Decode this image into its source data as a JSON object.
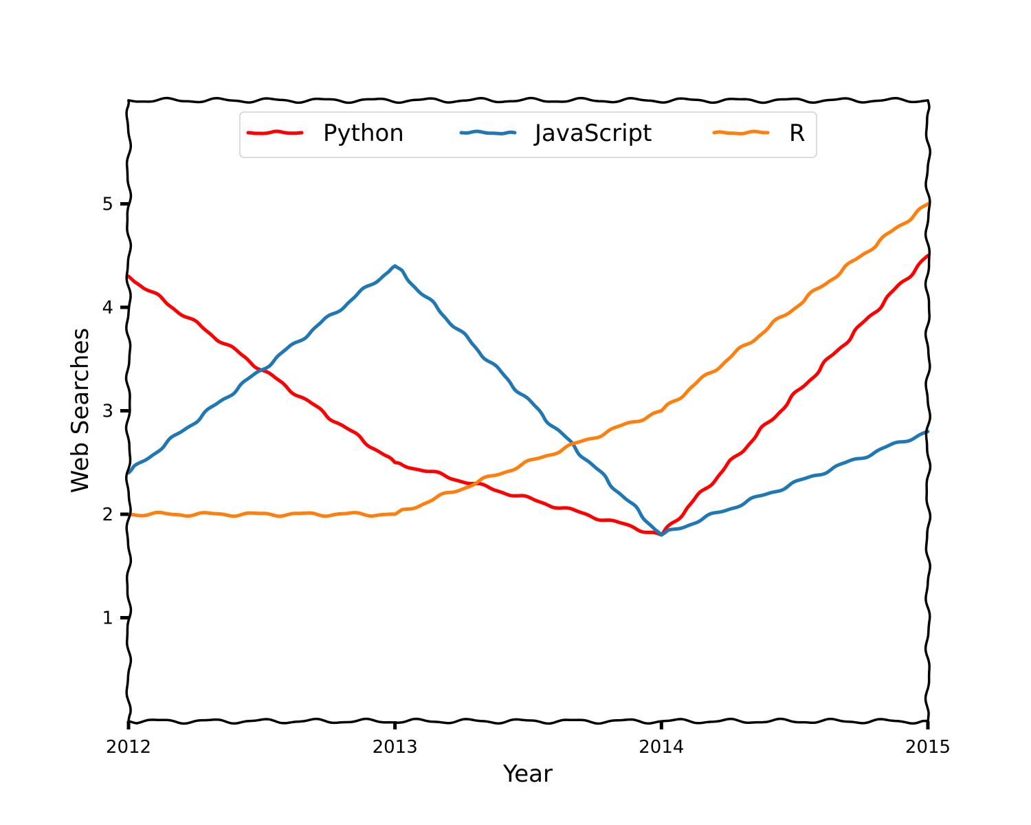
{
  "chart_data": {
    "type": "line",
    "title": "",
    "xlabel": "Year",
    "ylabel": "Web Searches",
    "xlim": [
      2012,
      2015
    ],
    "ylim": [
      0,
      6
    ],
    "xticks": [
      2012,
      2013,
      2014,
      2015
    ],
    "yticks": [
      1,
      2,
      3,
      4,
      5
    ],
    "grid": false,
    "legend_position": "top-center",
    "x": [
      2012,
      2013,
      2014,
      2015
    ],
    "series": [
      {
        "name": "Python",
        "color": "#ff0000",
        "values": [
          4.3,
          2.5,
          1.8,
          4.5
        ]
      },
      {
        "name": "JavaScript",
        "color": "#1f77b4",
        "values": [
          2.4,
          4.4,
          1.8,
          2.8
        ]
      },
      {
        "name": "R",
        "color": "#ff7f0e",
        "values": [
          2.0,
          2.0,
          3.0,
          5.0
        ]
      }
    ]
  }
}
